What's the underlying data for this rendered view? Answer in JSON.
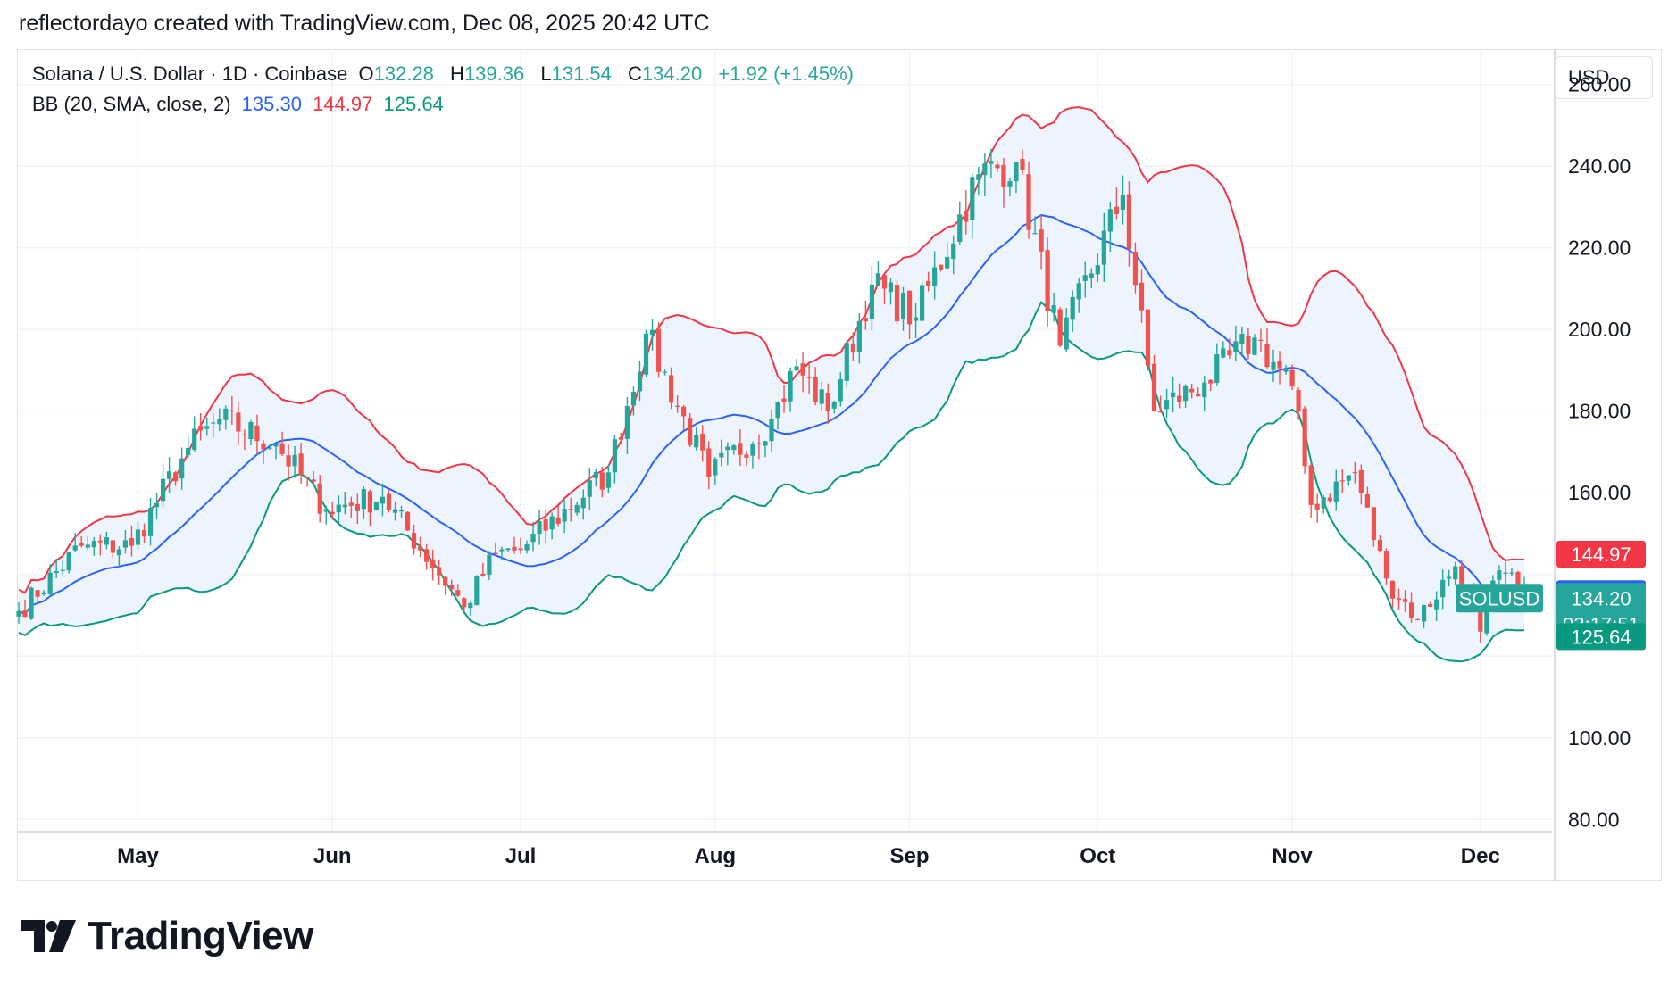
{
  "header": {
    "attribution": "reflectordayo created with TradingView.com, Dec 08, 2025 20:42 UTC"
  },
  "legend": {
    "symbol_desc": "Solana / U.S. Dollar · 1D · Coinbase",
    "o_label": "O",
    "o_value": "132.28",
    "h_label": "H",
    "h_value": "139.36",
    "l_label": "L",
    "l_value": "131.54",
    "c_label": "C",
    "c_value": "134.20",
    "change": "+1.92 (+1.45%)",
    "bb_label": "BB (20, SMA, close, 2)",
    "bb_basis": "135.30",
    "bb_upper": "144.97",
    "bb_lower": "125.64"
  },
  "currency_button": "USD",
  "price_axis": {
    "ticks": [
      "260.00",
      "240.00",
      "220.00",
      "200.00",
      "180.00",
      "160.00",
      "100.00",
      "80.00"
    ]
  },
  "time_axis": {
    "ticks": [
      "May",
      "Jun",
      "Jul",
      "Aug",
      "Sep",
      "Oct",
      "Nov",
      "Dec"
    ]
  },
  "tags": {
    "upper": "144.97",
    "basis": "135.30",
    "last": "134.20",
    "countdown": "03:17:51",
    "lower": "125.64",
    "symbol": "SOLUSD"
  },
  "brand": "TradingView",
  "colors": {
    "up": "#26a69a",
    "down": "#ef5350",
    "basis": "#2962ff",
    "upper": "#f23645",
    "lower": "#089981",
    "band_fill": "#eef4fd",
    "grid": "#f0f3fa"
  },
  "chart_data": {
    "type": "candlestick",
    "title": "Solana / U.S. Dollar · 1D · Coinbase",
    "x_start": "2025-04-12",
    "x_end": "2025-12-08",
    "ylim": [
      77,
      268
    ],
    "last": {
      "open": 132.28,
      "high": 139.36,
      "low": 131.54,
      "close": 134.2
    },
    "close_keypoints": [
      {
        "date": "2025-04-12",
        "close": 131
      },
      {
        "date": "2025-04-22",
        "close": 147
      },
      {
        "date": "2025-04-30",
        "close": 147
      },
      {
        "date": "2025-05-09",
        "close": 171
      },
      {
        "date": "2025-05-14",
        "close": 178
      },
      {
        "date": "2025-05-23",
        "close": 172
      },
      {
        "date": "2025-05-31",
        "close": 156
      },
      {
        "date": "2025-06-09",
        "close": 159
      },
      {
        "date": "2025-06-22",
        "close": 132
      },
      {
        "date": "2025-06-27",
        "close": 145
      },
      {
        "date": "2025-07-01",
        "close": 146
      },
      {
        "date": "2025-07-15",
        "close": 165
      },
      {
        "date": "2025-07-21",
        "close": 199
      },
      {
        "date": "2025-07-31",
        "close": 164
      },
      {
        "date": "2025-08-10",
        "close": 178
      },
      {
        "date": "2025-08-14",
        "close": 191
      },
      {
        "date": "2025-08-19",
        "close": 180
      },
      {
        "date": "2025-08-26",
        "close": 211
      },
      {
        "date": "2025-09-02",
        "close": 203
      },
      {
        "date": "2025-09-12",
        "close": 238
      },
      {
        "date": "2025-09-18",
        "close": 241
      },
      {
        "date": "2025-09-25",
        "close": 196
      },
      {
        "date": "2025-10-05",
        "close": 233
      },
      {
        "date": "2025-10-10",
        "close": 180
      },
      {
        "date": "2025-10-18",
        "close": 187
      },
      {
        "date": "2025-10-26",
        "close": 198
      },
      {
        "date": "2025-11-01",
        "close": 186
      },
      {
        "date": "2025-11-04",
        "close": 157
      },
      {
        "date": "2025-11-11",
        "close": 165
      },
      {
        "date": "2025-11-16",
        "close": 139
      },
      {
        "date": "2025-11-21",
        "close": 129
      },
      {
        "date": "2025-11-27",
        "close": 142
      },
      {
        "date": "2025-12-01",
        "close": 126
      },
      {
        "date": "2025-12-04",
        "close": 141
      },
      {
        "date": "2025-12-08",
        "close": 134.2
      }
    ],
    "indicator": {
      "name": "BB (20, SMA, close, 2)",
      "basis_last": 135.3,
      "upper_last": 144.97,
      "lower_last": 125.64
    }
  }
}
